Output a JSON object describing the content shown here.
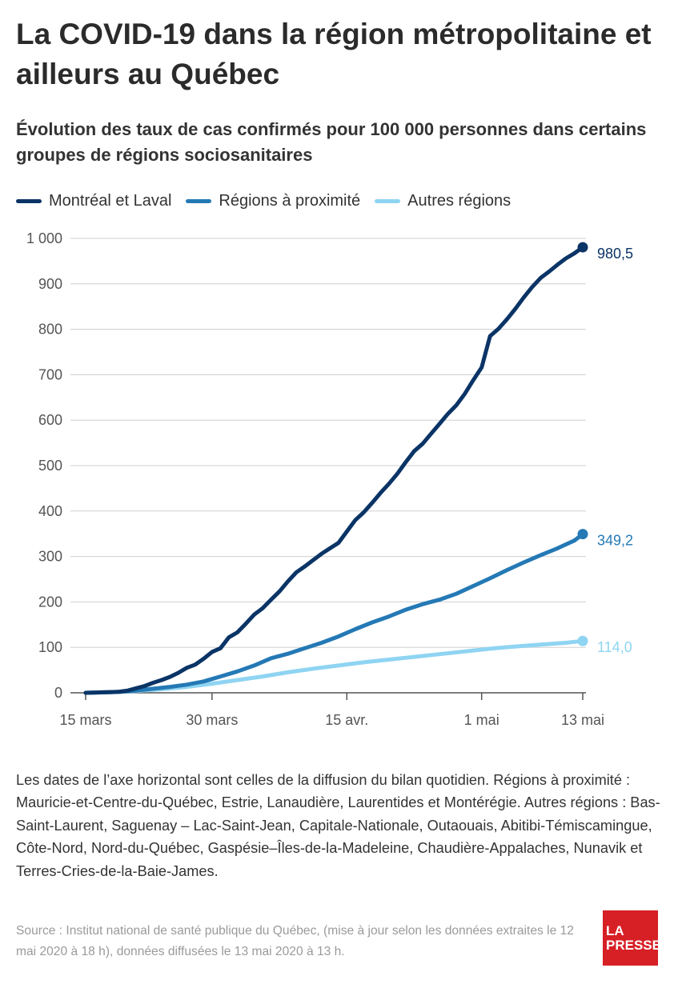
{
  "title": "La COVID-19 dans la région métropolitaine et ailleurs au Québec",
  "subtitle": "Évolution des taux de cas confirmés pour 100 000 personnes dans certains groupes de régions sociosanitaires",
  "note": "Les dates de l’axe horizontal sont celles de la diffusion du bilan quotidien. Régions à proximité : Mauricie-et-Centre-du-Québec, Estrie, Lanaudière, Laurentides et Montérégie. Autres régions : Bas-Saint-Laurent, Saguenay – Lac-Saint-Jean, Capitale-Nationale, Outaouais, Abitibi-Témiscamingue, Côte-Nord, Nord-du-Québec, Gaspésie–Îles-de-la-Madeleine, Chaudière-Appalaches, Nunavik et Terres-Cries-de-la-Baie-James.",
  "source": "Source : Institut national de santé publique du Québec, (mise à jour selon les données extraites le 12 mai 2020 à 18 h), données diffusées le 13 mai 2020 à 13 h.",
  "logo": {
    "line1": "LA",
    "line2": "PRESSE"
  },
  "chart_data": {
    "type": "line",
    "x_start": "2020-03-15",
    "x_end": "2020-05-13",
    "x_ticks": [
      {
        "date": "2020-03-15",
        "label": "15 mars"
      },
      {
        "date": "2020-03-30",
        "label": "30 mars"
      },
      {
        "date": "2020-04-15",
        "label": "15 avr."
      },
      {
        "date": "2020-05-01",
        "label": "1 mai"
      },
      {
        "date": "2020-05-13",
        "label": "13 mai"
      }
    ],
    "ylim": [
      0,
      1000
    ],
    "y_ticks": [
      {
        "value": 0,
        "label": "0"
      },
      {
        "value": 100,
        "label": "100"
      },
      {
        "value": 200,
        "label": "200"
      },
      {
        "value": 300,
        "label": "300"
      },
      {
        "value": 400,
        "label": "400"
      },
      {
        "value": 500,
        "label": "500"
      },
      {
        "value": 600,
        "label": "600"
      },
      {
        "value": 700,
        "label": "700"
      },
      {
        "value": 800,
        "label": "800"
      },
      {
        "value": 900,
        "label": "900"
      },
      {
        "value": 1000,
        "label": "1 000"
      }
    ],
    "grid": true,
    "legend_position": "top-left",
    "series": [
      {
        "name": "Montréal et Laval",
        "color": "#0b3466",
        "end_label": "980,5",
        "points": [
          [
            "2020-03-15",
            0
          ],
          [
            "2020-03-16",
            0.5
          ],
          [
            "2020-03-17",
            1
          ],
          [
            "2020-03-18",
            1.5
          ],
          [
            "2020-03-19",
            2.5
          ],
          [
            "2020-03-20",
            5
          ],
          [
            "2020-03-21",
            10
          ],
          [
            "2020-03-22",
            15
          ],
          [
            "2020-03-23",
            22
          ],
          [
            "2020-03-24",
            28
          ],
          [
            "2020-03-25",
            35
          ],
          [
            "2020-03-26",
            44
          ],
          [
            "2020-03-27",
            55
          ],
          [
            "2020-03-28",
            62
          ],
          [
            "2020-03-29",
            75
          ],
          [
            "2020-03-30",
            90
          ],
          [
            "2020-03-31",
            98
          ],
          [
            "2020-04-01",
            122
          ],
          [
            "2020-04-02",
            133
          ],
          [
            "2020-04-03",
            152
          ],
          [
            "2020-04-04",
            172
          ],
          [
            "2020-04-05",
            186
          ],
          [
            "2020-04-06",
            205
          ],
          [
            "2020-04-07",
            223
          ],
          [
            "2020-04-08",
            245
          ],
          [
            "2020-04-09",
            265
          ],
          [
            "2020-04-10",
            278
          ],
          [
            "2020-04-11",
            292
          ],
          [
            "2020-04-12",
            306
          ],
          [
            "2020-04-13",
            318
          ],
          [
            "2020-04-14",
            330
          ],
          [
            "2020-04-15",
            355
          ],
          [
            "2020-04-16",
            380
          ],
          [
            "2020-04-17",
            397
          ],
          [
            "2020-04-18",
            418
          ],
          [
            "2020-04-19",
            440
          ],
          [
            "2020-04-20",
            460
          ],
          [
            "2020-04-21",
            482
          ],
          [
            "2020-04-22",
            508
          ],
          [
            "2020-04-23",
            532
          ],
          [
            "2020-04-24",
            548
          ],
          [
            "2020-04-25",
            570
          ],
          [
            "2020-04-26",
            592
          ],
          [
            "2020-04-27",
            614
          ],
          [
            "2020-04-28",
            633
          ],
          [
            "2020-04-29",
            658
          ],
          [
            "2020-04-30",
            688
          ],
          [
            "2020-05-01",
            716
          ],
          [
            "2020-05-02",
            785
          ],
          [
            "2020-05-03",
            801
          ],
          [
            "2020-05-04",
            822
          ],
          [
            "2020-05-05",
            845
          ],
          [
            "2020-05-06",
            870
          ],
          [
            "2020-05-07",
            893
          ],
          [
            "2020-05-08",
            913
          ],
          [
            "2020-05-09",
            927
          ],
          [
            "2020-05-10",
            942
          ],
          [
            "2020-05-11",
            956
          ],
          [
            "2020-05-12",
            967
          ],
          [
            "2020-05-13",
            980.5
          ]
        ]
      },
      {
        "name": "Régions à proximité",
        "color": "#2479b5",
        "end_label": "349,2",
        "points": [
          [
            "2020-03-15",
            0
          ],
          [
            "2020-03-17",
            1
          ],
          [
            "2020-03-19",
            2
          ],
          [
            "2020-03-21",
            5
          ],
          [
            "2020-03-23",
            9
          ],
          [
            "2020-03-25",
            13
          ],
          [
            "2020-03-27",
            18
          ],
          [
            "2020-03-29",
            25
          ],
          [
            "2020-03-31",
            36
          ],
          [
            "2020-04-02",
            47
          ],
          [
            "2020-04-04",
            60
          ],
          [
            "2020-04-06",
            76
          ],
          [
            "2020-04-08",
            86
          ],
          [
            "2020-04-10",
            98
          ],
          [
            "2020-04-12",
            110
          ],
          [
            "2020-04-14",
            124
          ],
          [
            "2020-04-16",
            140
          ],
          [
            "2020-04-18",
            155
          ],
          [
            "2020-04-20",
            168
          ],
          [
            "2020-04-22",
            183
          ],
          [
            "2020-04-24",
            195
          ],
          [
            "2020-04-26",
            205
          ],
          [
            "2020-04-28",
            218
          ],
          [
            "2020-04-30",
            235
          ],
          [
            "2020-05-02",
            252
          ],
          [
            "2020-05-04",
            270
          ],
          [
            "2020-05-06",
            287
          ],
          [
            "2020-05-08",
            303
          ],
          [
            "2020-05-10",
            318
          ],
          [
            "2020-05-12",
            335
          ],
          [
            "2020-05-13",
            349.2
          ]
        ]
      },
      {
        "name": "Autres régions",
        "color": "#8fd4f2",
        "end_label": "114,0",
        "points": [
          [
            "2020-03-15",
            0
          ],
          [
            "2020-03-18",
            1
          ],
          [
            "2020-03-21",
            4
          ],
          [
            "2020-03-24",
            8
          ],
          [
            "2020-03-27",
            13
          ],
          [
            "2020-03-30",
            20
          ],
          [
            "2020-04-02",
            28
          ],
          [
            "2020-04-05",
            36
          ],
          [
            "2020-04-08",
            45
          ],
          [
            "2020-04-11",
            53
          ],
          [
            "2020-04-14",
            60
          ],
          [
            "2020-04-17",
            67
          ],
          [
            "2020-04-20",
            73
          ],
          [
            "2020-04-23",
            79
          ],
          [
            "2020-04-26",
            85
          ],
          [
            "2020-04-29",
            91
          ],
          [
            "2020-05-02",
            97
          ],
          [
            "2020-05-05",
            102
          ],
          [
            "2020-05-08",
            106
          ],
          [
            "2020-05-11",
            110
          ],
          [
            "2020-05-13",
            114
          ]
        ]
      }
    ]
  }
}
